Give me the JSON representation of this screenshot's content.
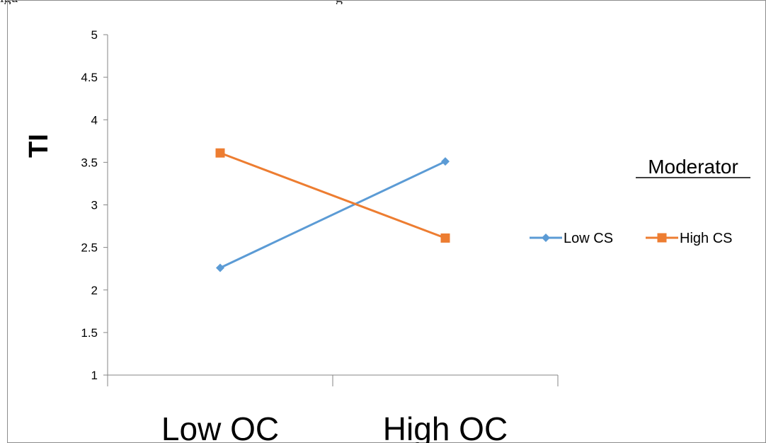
{
  "caption": {
    "left_text": "igu",
    "right_text": "g"
  },
  "chart_data": {
    "type": "line",
    "categories": [
      "Low OC",
      "High OC"
    ],
    "series": [
      {
        "name": "Low CS",
        "values": [
          2.26,
          3.51
        ],
        "color": "#5b9bd5",
        "marker": "diamond"
      },
      {
        "name": "High CS",
        "values": [
          3.61,
          2.61
        ],
        "color": "#ed7d31",
        "marker": "square"
      }
    ],
    "ylim": [
      1,
      5
    ],
    "yticks": [
      "1",
      "1.5",
      "2",
      "2.5",
      "3",
      "3.5",
      "4",
      "4.5",
      "5"
    ],
    "ylabel": "TI",
    "xlabel": "",
    "title": "",
    "legend": {
      "title": "Moderator",
      "position": "right"
    },
    "grid": false
  }
}
